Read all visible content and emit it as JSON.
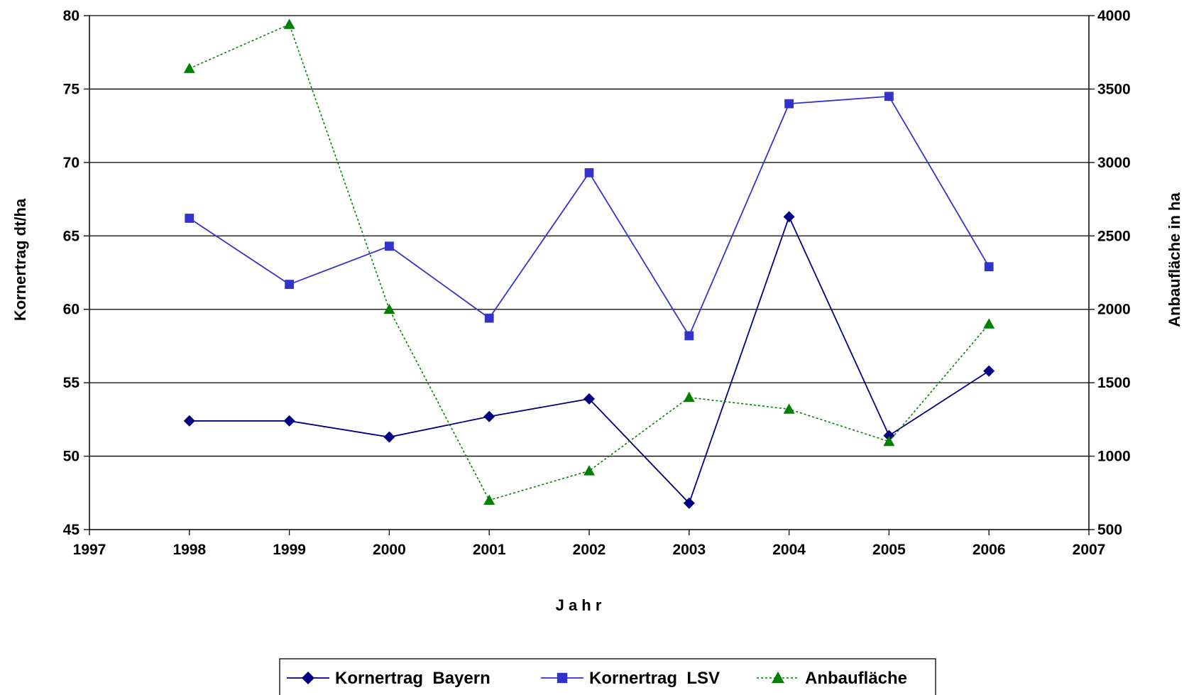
{
  "chart_data": {
    "type": "line",
    "title": "",
    "xlabel": "J a h r",
    "ylabel_left": "Kornertrag  dt/ha",
    "ylabel_right": "Anbaufläche  in ha",
    "xlim": [
      1997,
      2007
    ],
    "x_ticks": [
      "1997",
      "1998",
      "1999",
      "2000",
      "2001",
      "2002",
      "2003",
      "2004",
      "2005",
      "2006",
      "2007"
    ],
    "ylim_left": [
      45,
      80
    ],
    "y_left_ticks": [
      "45",
      "50",
      "55",
      "60",
      "65",
      "70",
      "75",
      "80"
    ],
    "ylim_right": [
      500,
      4000
    ],
    "y_right_ticks": [
      "500",
      "1000",
      "1500",
      "2000",
      "2500",
      "3000",
      "3500",
      "4000"
    ],
    "grid": "horizontal",
    "legend_position": "bottom",
    "x": [
      1998,
      1999,
      2000,
      2001,
      2002,
      2003,
      2004,
      2005,
      2006
    ],
    "series": [
      {
        "name": "Kornertrag  Bayern",
        "axis": "left",
        "color": "#000080",
        "marker": "diamond",
        "line": "solid",
        "values": [
          52.4,
          52.4,
          51.3,
          52.7,
          53.9,
          46.8,
          66.3,
          51.4,
          55.8
        ]
      },
      {
        "name": "Kornertrag  LSV",
        "axis": "left",
        "color": "#3333CC",
        "marker": "square",
        "line": "solid",
        "values": [
          66.2,
          61.7,
          64.3,
          59.4,
          69.3,
          58.2,
          74.0,
          74.5,
          62.9
        ]
      },
      {
        "name": "Anbaufläche",
        "axis": "right",
        "color": "#008000",
        "marker": "triangle",
        "line": "dotted",
        "values": [
          3640,
          3940,
          2000,
          700,
          900,
          1400,
          1320,
          1100,
          1900
        ]
      }
    ]
  }
}
